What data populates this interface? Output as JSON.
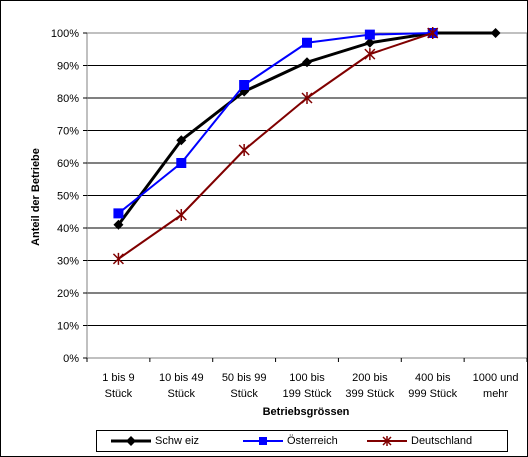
{
  "chart_data": {
    "type": "line",
    "title": "",
    "xlabel": "Betriebsgrössen",
    "ylabel": "Anteil der Betriebe",
    "ylim": [
      0,
      100
    ],
    "y_ticks": [
      "0%",
      "10%",
      "20%",
      "30%",
      "40%",
      "50%",
      "60%",
      "70%",
      "80%",
      "90%",
      "100%"
    ],
    "categories": [
      [
        "1 bis 9",
        "Stück"
      ],
      [
        "10 bis 49",
        "Stück"
      ],
      [
        "50 bis 99",
        "Stück"
      ],
      [
        "100 bis",
        "199 Stück"
      ],
      [
        "200 bis",
        "399 Stück"
      ],
      [
        "400 bis",
        "999 Stück"
      ],
      [
        "1000 und",
        "mehr"
      ]
    ],
    "grid": "horizontal",
    "legend_position": "bottom",
    "series": [
      {
        "name": "Schw eiz",
        "color": "#000000",
        "marker": "diamond",
        "values": [
          41,
          67,
          82,
          91,
          97,
          100,
          100
        ]
      },
      {
        "name": "Österreich",
        "color": "#0000ff",
        "marker": "square",
        "values": [
          44.5,
          60,
          84,
          97,
          99.5,
          100,
          null
        ]
      },
      {
        "name": "Deutschland",
        "color": "#800000",
        "marker": "star",
        "values": [
          30.5,
          44,
          64,
          80,
          93.5,
          100,
          null
        ]
      }
    ]
  }
}
